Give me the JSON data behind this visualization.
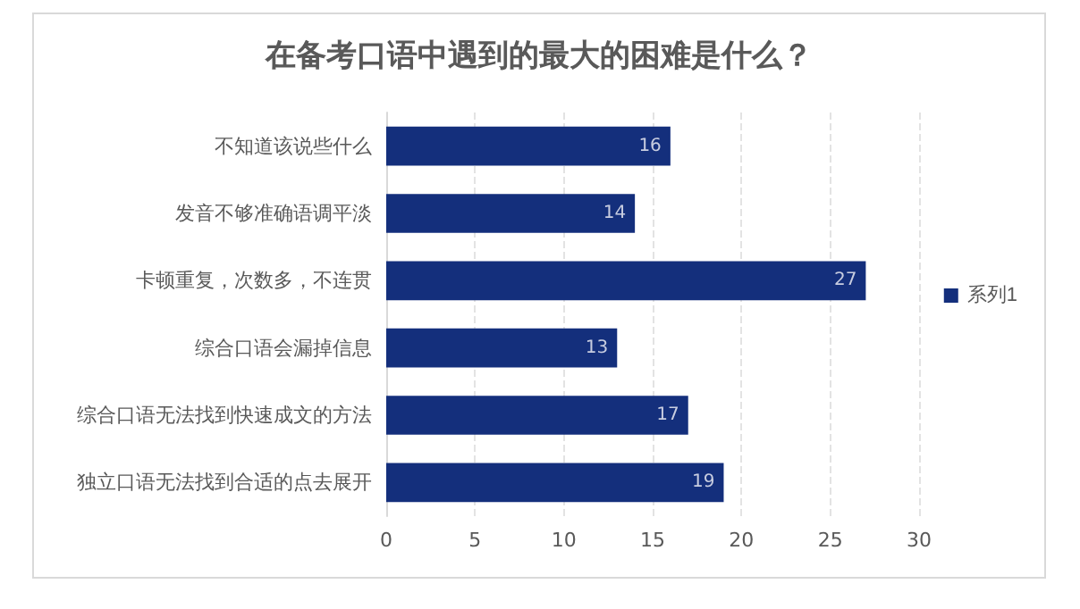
{
  "chart_data": {
    "type": "bar",
    "orientation": "horizontal",
    "title": "在备考口语中遇到的最大的困难是什么？",
    "categories": [
      "不知道该说些什么",
      "发音不够准确语调平淡",
      "卡顿重复，次数多，不连贯",
      "综合口语会漏掉信息",
      "综合口语无法找到快速成文的方法",
      "独立口语无法找到合适的点去展开"
    ],
    "series": [
      {
        "name": "系列1",
        "color": "#142f7c",
        "values": [
          16,
          14,
          27,
          13,
          17,
          19
        ]
      }
    ],
    "xlim": [
      0,
      30
    ],
    "xticks": [
      0,
      5,
      10,
      15,
      20,
      25,
      30
    ],
    "grid": "x",
    "legend": "right",
    "data_labels": true
  }
}
